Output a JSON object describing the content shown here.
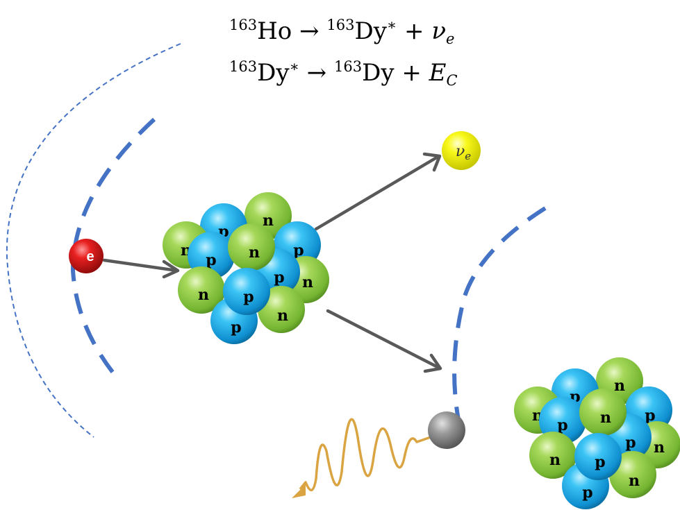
{
  "equations": {
    "line1": {
      "mass_a": "163",
      "element_a": "Ho",
      "arrow": "→",
      "mass_b": "163",
      "element_b": "Dy",
      "excited": "∗",
      "plus": "+",
      "symbol": "ν",
      "subscript": "e"
    },
    "line2": {
      "mass_a": "163",
      "element_a": "Dy",
      "excited": "∗",
      "arrow": "→",
      "mass_b": "163",
      "element_b": "Dy",
      "plus": "+",
      "symbol": "E",
      "subscript": "C"
    }
  },
  "particles": {
    "electron_label": "e",
    "neutrino_symbol": "ν",
    "neutrino_subscript": "e",
    "proton_label": "p",
    "neutron_label": "n"
  },
  "colors": {
    "shell_blue": "#4472c4",
    "arrow_gray": "#595959",
    "photon_gold": "#d9a441",
    "proton_cyan": "#1ba8e8",
    "neutron_green": "#8cc63e",
    "electron_red": "#e01b1b",
    "neutrino_yellow": "#f5f500",
    "daughter_atom_gray": "#8a8a8a"
  }
}
